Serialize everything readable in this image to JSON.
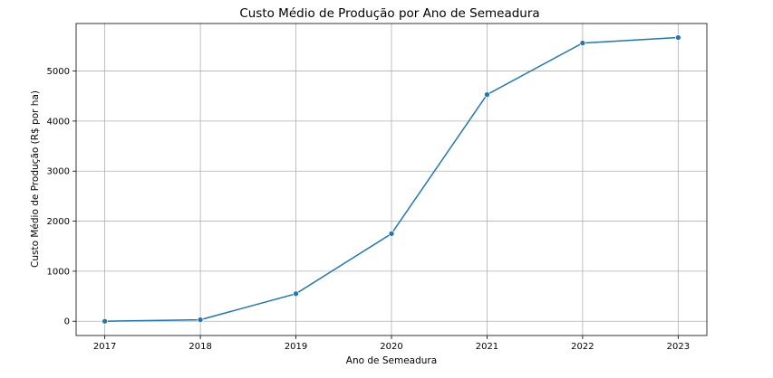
{
  "chart_data": {
    "type": "line",
    "title": "Custo Médio de Produção por Ano de Semeadura",
    "xlabel": "Ano de Semeadura",
    "ylabel": "Custo Médio de Produção (R$ por ha)",
    "x": [
      2017,
      2018,
      2019,
      2020,
      2021,
      2022,
      2023
    ],
    "series": [
      {
        "values": [
          0,
          30,
          550,
          1750,
          4530,
          5560,
          5670
        ]
      }
    ],
    "xticks": [
      "2017",
      "2018",
      "2019",
      "2020",
      "2021",
      "2022",
      "2023"
    ],
    "yticks": [
      0,
      1000,
      2000,
      3000,
      4000,
      5000
    ],
    "xlim": [
      2016.7,
      2023.3
    ],
    "ylim": [
      -285,
      5950
    ],
    "grid": true,
    "color": "#1f77b4"
  }
}
